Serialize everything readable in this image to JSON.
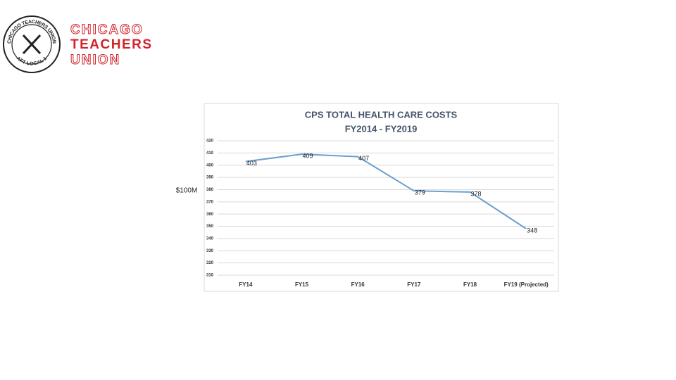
{
  "logo": {
    "seal_top": "CHICAGO TEACHERS UNION",
    "seal_bottom": "AFT LOCAL 1",
    "lines": [
      "CHICAGO",
      "TEACHERS",
      "UNION"
    ]
  },
  "chart_data": {
    "type": "line",
    "title": [
      "CPS TOTAL HEALTH CARE COSTS",
      "FY2014 - FY2019"
    ],
    "y_label": "$100M",
    "categories": [
      "FY14",
      "FY15",
      "FY16",
      "FY17",
      "FY18",
      "FY19 (Projected)"
    ],
    "series": [
      {
        "name": "Health care costs",
        "color": "#6b9fd1",
        "values": [
          403,
          409,
          407,
          379,
          378,
          348
        ]
      }
    ],
    "ylim": [
      310,
      420
    ],
    "yticks": [
      310,
      320,
      330,
      340,
      350,
      360,
      370,
      380,
      390,
      400,
      410,
      420
    ],
    "grid": true
  }
}
